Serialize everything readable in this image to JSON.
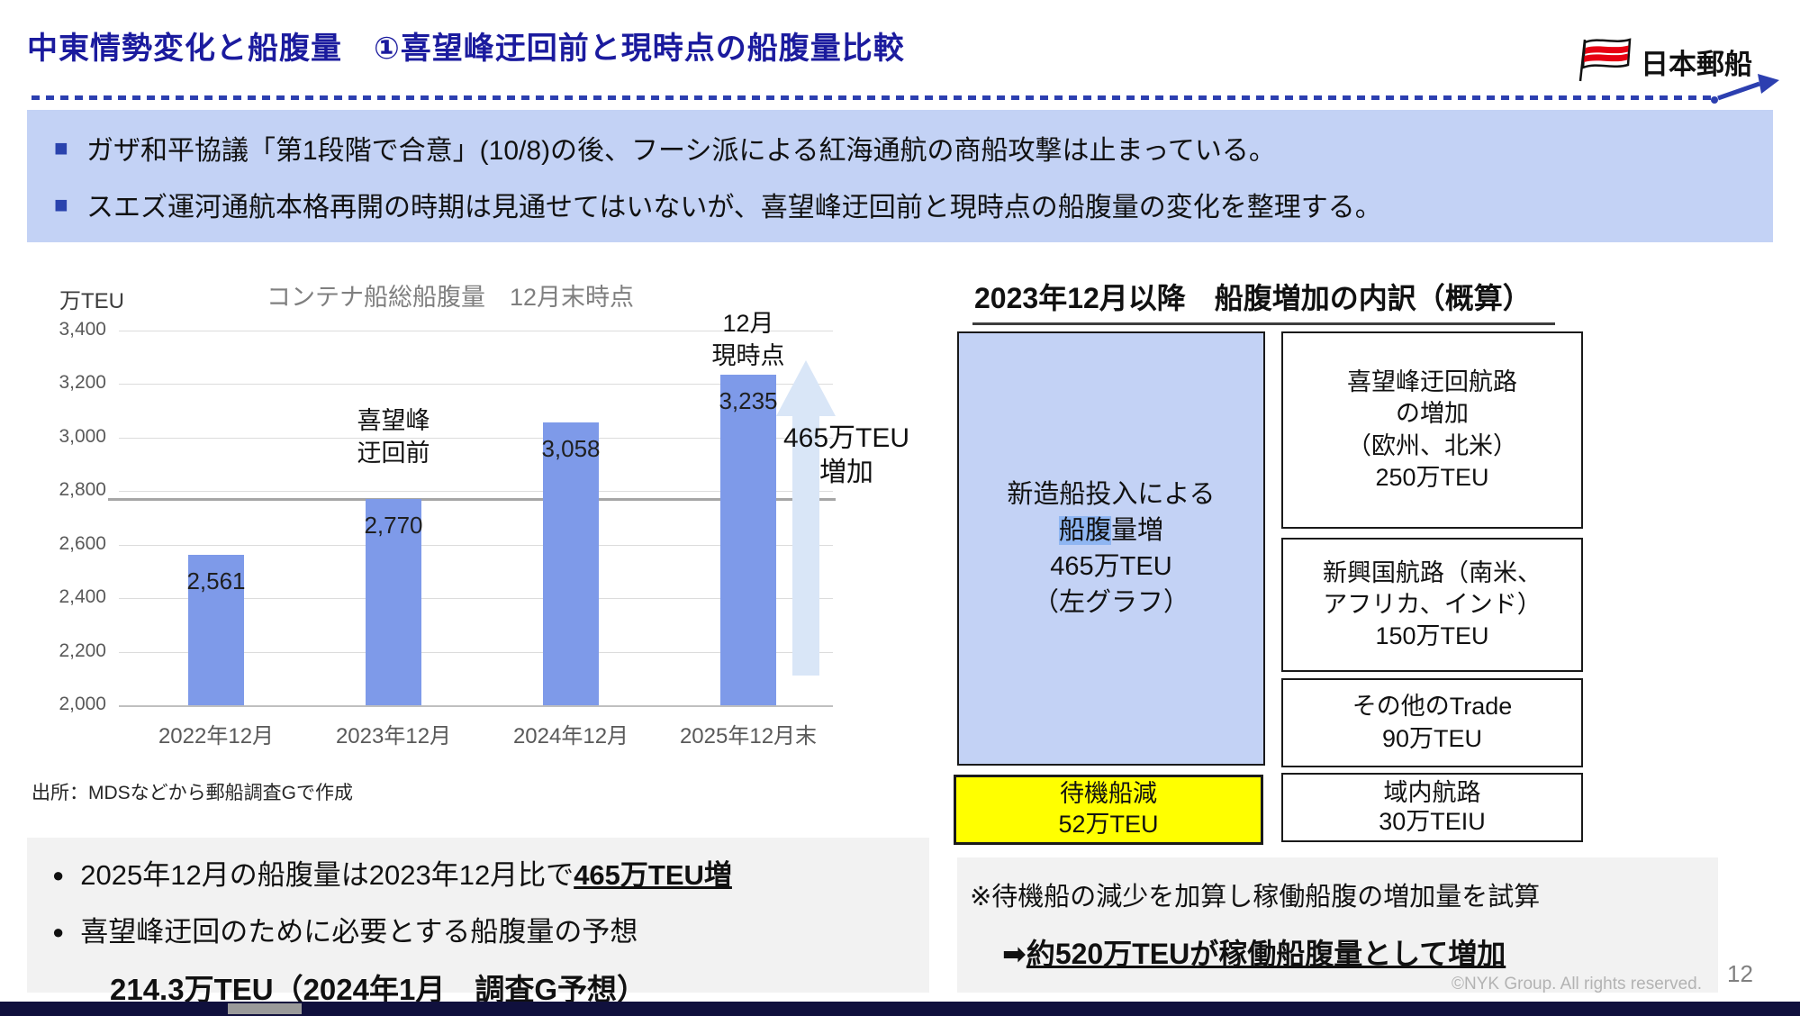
{
  "header": {
    "title": "中東情勢変化と船腹量　①喜望峰迂回前と現時点の船腹量比較",
    "logo_text": "日本郵船"
  },
  "summary_box": {
    "bullets": [
      "ガザ和平協議「第1段階で合意」(10/8)の後、フーシ派による紅海通航の商船攻撃は止まっている。",
      "スエズ運河通航本格再開の時期は見通せてはいないが、喜望峰迂回前と現時点の船腹量の変化を整理する。"
    ]
  },
  "chart_data": {
    "type": "bar",
    "title": "コンテナ船総船腹量　12月末時点",
    "unit_label": "万TEU",
    "categories": [
      "2022年12月",
      "2023年12月",
      "2024年12月",
      "2025年12月末"
    ],
    "values": [
      2561,
      2770,
      3058,
      3235
    ],
    "ylim": [
      2000,
      3400
    ],
    "ytick_step": 200,
    "reference_line": 2770,
    "grid": true,
    "annotations": {
      "before_detour": "喜望峰\n迂回前",
      "current": "12月\n現時点",
      "increase": "465万TEU\n増加"
    },
    "source": "出所：MDSなどから郵船調査Gで作成"
  },
  "right_panel": {
    "heading": "2023年12月以降　船腹増加の内訳（概算）",
    "big_box": {
      "line1": "新造船投入による",
      "line2_highlight": "船腹",
      "line2_rest": "量増",
      "line3": "465万TEU",
      "line4": "（左グラフ）"
    },
    "boxes": [
      "喜望峰迂回航路\nの増加\n（欧州、北米）\n250万TEU",
      "新興国航路（南米、\nアフリカ、インド）\n150万TEU",
      "その他のTrade\n90万TEU",
      "域内航路\n30万TEIU"
    ],
    "yellow_box": "待機船減\n52万TEU"
  },
  "bottom_left": {
    "bullet1_prefix": "2025年12月の船腹量は2023年12月比で",
    "bullet1_emphasis": "465万TEU増",
    "bullet2": "喜望峰迂回のために必要とする船腹量の予想",
    "forecast": "214.3万TEU（2024年1月　調査G予想）"
  },
  "bottom_right": {
    "note": "※待機船の減少を加算し稼働船腹の増加量を試算",
    "arrow": "➡",
    "conclusion": "約520万TEUが稼働船腹量として増加"
  },
  "footer": {
    "copyright": "©NYK Group. All rights reserved.",
    "page_number": "12"
  },
  "colors": {
    "title_navy": "#1b1b9e",
    "summary_bg": "#c3d2f5",
    "bar_blue": "#7e9ae9",
    "arrow_pale_blue": "#d9e6f7",
    "highlight_blue": "#8fb6f2",
    "yellow": "#ffff00",
    "flag_red": "#e60012"
  }
}
